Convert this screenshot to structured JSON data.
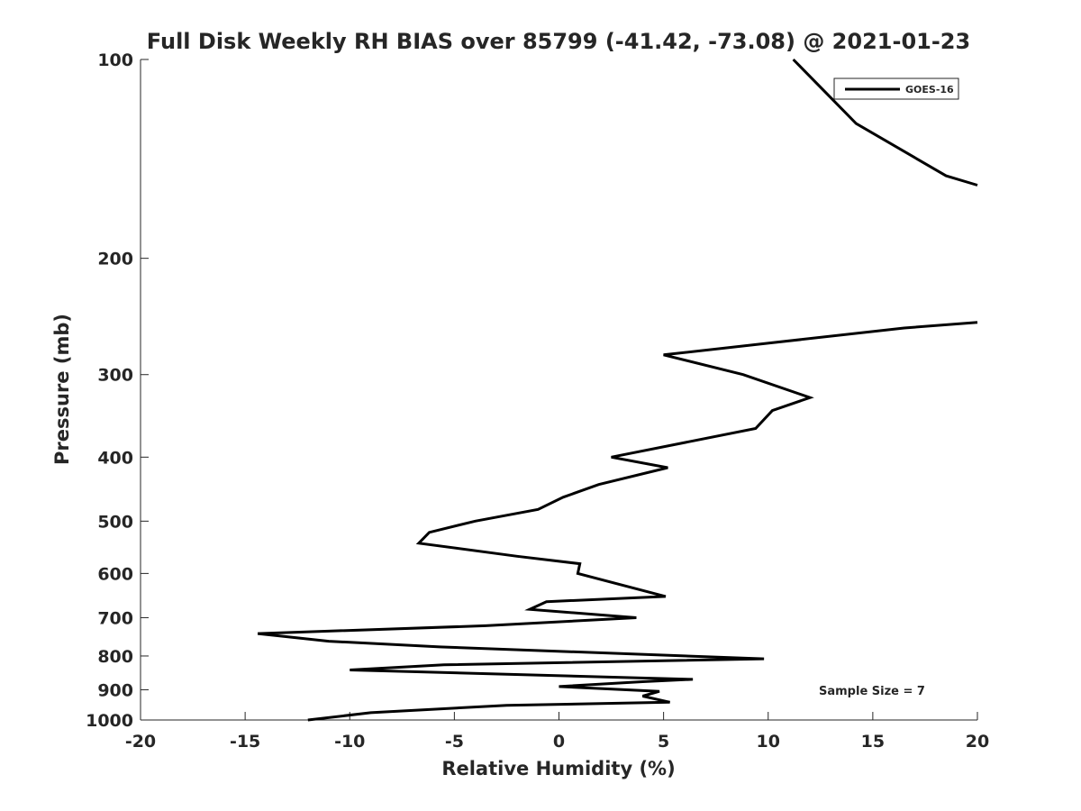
{
  "chart_data": {
    "type": "line",
    "title": "Full Disk Weekly RH BIAS over 85799 (-41.42, -73.08) @ 2021-01-23",
    "xlabel": "Relative Humidity (%)",
    "ylabel": "Pressure (mb)",
    "xlim": [
      -20,
      20
    ],
    "ylim": [
      100,
      1000
    ],
    "yscale": "log",
    "yaxis_reversed": true,
    "grid": false,
    "legend_position": "top-right",
    "xticks": [
      -20,
      -15,
      -10,
      -5,
      0,
      5,
      10,
      15,
      20
    ],
    "xtick_labels": [
      "-20",
      "-15",
      "-10",
      "-5",
      "0",
      "5",
      "10",
      "15",
      "20"
    ],
    "yticks": [
      100,
      200,
      300,
      400,
      500,
      600,
      700,
      800,
      900,
      1000
    ],
    "ytick_labels": [
      "100",
      "200",
      "300",
      "400",
      "500",
      "600",
      "700",
      "800",
      "900",
      "1000"
    ],
    "annotation": "Sample Size = 7",
    "series": [
      {
        "name": "GOES-16",
        "color": "#000000",
        "segments": [
          [
            {
              "x": 11.2,
              "y": 100
            },
            {
              "x": 14.2,
              "y": 125
            },
            {
              "x": 18.5,
              "y": 150
            },
            {
              "x": 20.0,
              "y": 155
            }
          ],
          [
            {
              "x": 20.0,
              "y": 250
            },
            {
              "x": 16.5,
              "y": 255
            },
            {
              "x": 5.0,
              "y": 280
            },
            {
              "x": 8.8,
              "y": 300
            },
            {
              "x": 12.0,
              "y": 325
            },
            {
              "x": 10.2,
              "y": 340
            },
            {
              "x": 9.4,
              "y": 362
            },
            {
              "x": 2.5,
              "y": 400
            },
            {
              "x": 5.2,
              "y": 415
            },
            {
              "x": 1.9,
              "y": 440
            },
            {
              "x": 0.2,
              "y": 460
            },
            {
              "x": -1.0,
              "y": 480
            },
            {
              "x": -4.0,
              "y": 500
            },
            {
              "x": -6.2,
              "y": 520
            },
            {
              "x": -6.7,
              "y": 540
            },
            {
              "x": -2.0,
              "y": 565
            },
            {
              "x": 1.0,
              "y": 580
            },
            {
              "x": 0.9,
              "y": 600
            },
            {
              "x": 5.1,
              "y": 650
            },
            {
              "x": -0.6,
              "y": 662
            },
            {
              "x": -1.4,
              "y": 680
            },
            {
              "x": 3.7,
              "y": 700
            },
            {
              "x": -3.5,
              "y": 720
            },
            {
              "x": -14.4,
              "y": 740
            },
            {
              "x": -11.0,
              "y": 760
            },
            {
              "x": -5.7,
              "y": 775
            },
            {
              "x": 9.8,
              "y": 808
            },
            {
              "x": -5.5,
              "y": 825
            },
            {
              "x": -10.0,
              "y": 840
            },
            {
              "x": 6.4,
              "y": 868
            },
            {
              "x": 4.0,
              "y": 875
            },
            {
              "x": 0.0,
              "y": 890
            },
            {
              "x": 4.8,
              "y": 905
            },
            {
              "x": 4.0,
              "y": 920
            },
            {
              "x": 5.3,
              "y": 940
            },
            {
              "x": -2.5,
              "y": 950
            },
            {
              "x": -9.0,
              "y": 975
            },
            {
              "x": -12.0,
              "y": 1000
            }
          ]
        ]
      }
    ]
  }
}
